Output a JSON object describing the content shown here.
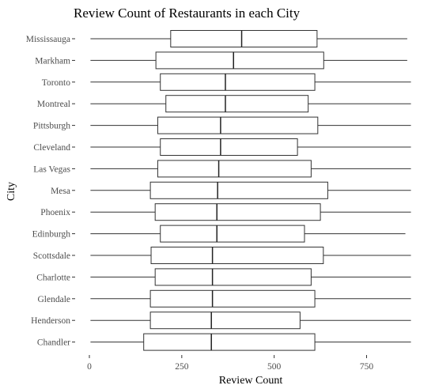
{
  "chart_data": {
    "type": "boxplot",
    "orientation": "horizontal",
    "title": "Review Count of Restaurants in each City",
    "xlabel": "Review Count",
    "ylabel": "City",
    "xlim": [
      0,
      870
    ],
    "x_ticks": [
      0,
      250,
      500,
      750
    ],
    "grid": false,
    "legend": "none",
    "categories": [
      "Mississauga",
      "Markham",
      "Toronto",
      "Montreal",
      "Pittsburgh",
      "Cleveland",
      "Las Vegas",
      "Mesa",
      "Phoenix",
      "Edinburgh",
      "Scottsdale",
      "Charlotte",
      "Glendale",
      "Henderson",
      "Chandler"
    ],
    "boxes": [
      {
        "city": "Mississauga",
        "whisker_low": 3,
        "q1": 220,
        "median": 412,
        "q3": 616,
        "whisker_high": 860
      },
      {
        "city": "Markham",
        "whisker_low": 3,
        "q1": 180,
        "median": 390,
        "q3": 634,
        "whisker_high": 860
      },
      {
        "city": "Toronto",
        "whisker_low": 3,
        "q1": 192,
        "median": 368,
        "q3": 610,
        "whisker_high": 870
      },
      {
        "city": "Montreal",
        "whisker_low": 3,
        "q1": 207,
        "median": 368,
        "q3": 592,
        "whisker_high": 870
      },
      {
        "city": "Pittsburgh",
        "whisker_low": 3,
        "q1": 185,
        "median": 355,
        "q3": 618,
        "whisker_high": 870
      },
      {
        "city": "Cleveland",
        "whisker_low": 3,
        "q1": 192,
        "median": 355,
        "q3": 563,
        "whisker_high": 870
      },
      {
        "city": "Las Vegas",
        "whisker_low": 3,
        "q1": 185,
        "median": 350,
        "q3": 600,
        "whisker_high": 870
      },
      {
        "city": "Mesa",
        "whisker_low": 3,
        "q1": 165,
        "median": 347,
        "q3": 645,
        "whisker_high": 870
      },
      {
        "city": "Phoenix",
        "whisker_low": 3,
        "q1": 178,
        "median": 345,
        "q3": 625,
        "whisker_high": 870
      },
      {
        "city": "Edinburgh",
        "whisker_low": 3,
        "q1": 192,
        "median": 345,
        "q3": 582,
        "whisker_high": 855
      },
      {
        "city": "Scottsdale",
        "whisker_low": 3,
        "q1": 167,
        "median": 333,
        "q3": 633,
        "whisker_high": 870
      },
      {
        "city": "Charlotte",
        "whisker_low": 3,
        "q1": 178,
        "median": 333,
        "q3": 600,
        "whisker_high": 870
      },
      {
        "city": "Glendale",
        "whisker_low": 3,
        "q1": 165,
        "median": 333,
        "q3": 610,
        "whisker_high": 870
      },
      {
        "city": "Henderson",
        "whisker_low": 3,
        "q1": 165,
        "median": 330,
        "q3": 570,
        "whisker_high": 870
      },
      {
        "city": "Chandler",
        "whisker_low": 3,
        "q1": 147,
        "median": 330,
        "q3": 610,
        "whisker_high": 870
      }
    ]
  }
}
